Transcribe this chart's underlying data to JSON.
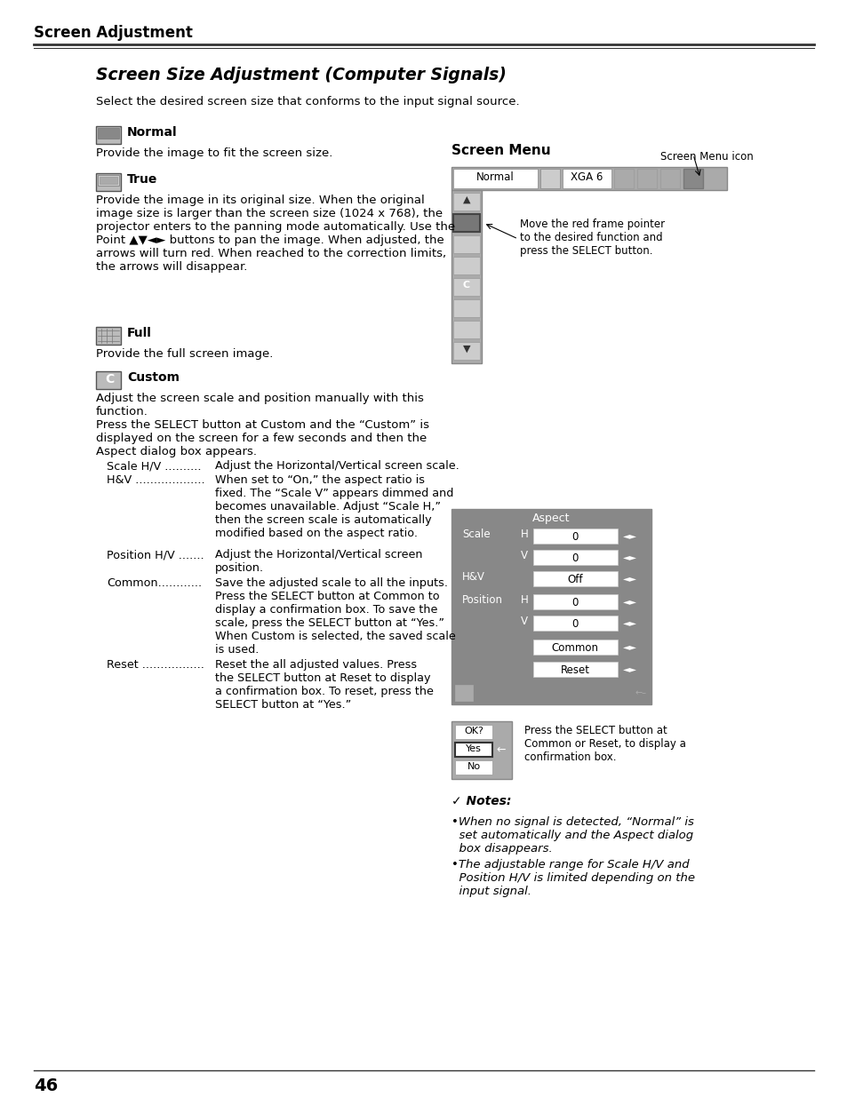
{
  "page_title": "Screen Adjustment",
  "section_title": "Screen Size Adjustment (Computer Signals)",
  "intro_text": "Select the desired screen size that conforms to the input signal source.",
  "bg_color": "#ffffff",
  "text_color": "#000000",
  "title_color": "#000000",
  "page_number": "46",
  "normal_label": "Normal",
  "normal_desc": "Provide the image to fit the screen size.",
  "true_label": "True",
  "true_desc": "Provide the image in its original size. When the original\nimage size is larger than the screen size (1024 x 768), the\nprojector enters to the panning mode automatically. Use the\nPoint ▲▼◄► buttons to pan the image. When adjusted, the\narrows will turn red. When reached to the correction limits,\nthe arrows will disappear.",
  "full_label": "Full",
  "full_desc": "Provide the full screen image.",
  "custom_label": "Custom",
  "custom_desc1": "Adjust the screen scale and position manually with this\nfunction.\nPress the SELECT button at Custom and the “Custom” is\ndisplayed on the screen for a few seconds and then the\nAspect dialog box appears.",
  "scale_hv_label": "Scale H/V ..........",
  "scale_hv_desc": "Adjust the Horizontal/Vertical screen scale.",
  "hv_label": "H&V ...................",
  "hv_desc": "When set to “On,” the aspect ratio is\nfixed. The “Scale V” appears dimmed and\nbecomes unavailable. Adjust “Scale H,”\nthen the screen scale is automatically\nmodified based on the aspect ratio.",
  "position_hv_label": "Position H/V .......",
  "position_hv_desc": "Adjust the Horizontal/Vertical screen\nposition.",
  "common_label": "Common............",
  "common_desc": "Save the adjusted scale to all the inputs.\nPress the SELECT button at Common to\ndisplay a confirmation box. To save the\nscale, press the SELECT button at “Yes.”\nWhen Custom is selected, the saved scale\nis used.",
  "reset_label": "Reset .................",
  "reset_desc": "Reset the all adjusted values. Press\nthe SELECT button at Reset to display\na confirmation box. To reset, press the\nSELECT button at “Yes.”",
  "screen_menu_label": "Screen Menu",
  "screen_menu_icon_label": "Screen Menu icon",
  "arrow_label": "Move the red frame pointer\nto the desired function and\npress the SELECT button.",
  "notes_header": "✓ Notes:",
  "note1": "•When no signal is detected, “Normal” is\n  set automatically and the Aspect dialog\n  box disappears.",
  "note2": "•The adjustable range for Scale H/V and\n  Position H/V is limited depending on the\n  input signal.",
  "confirm_label": "Press the SELECT button at\nCommon or Reset, to display a\nconfirmation box.",
  "aspect_title": "Aspect",
  "scale_label": "Scale",
  "hv_short": "H&V",
  "position_label": "Position",
  "h_label": "H",
  "v_label": "V",
  "off_label": "Off",
  "zero": "0",
  "common_btn": "Common",
  "reset_btn": "Reset",
  "ok_label": "OK?",
  "yes_label": "Yes",
  "no_label": "No"
}
